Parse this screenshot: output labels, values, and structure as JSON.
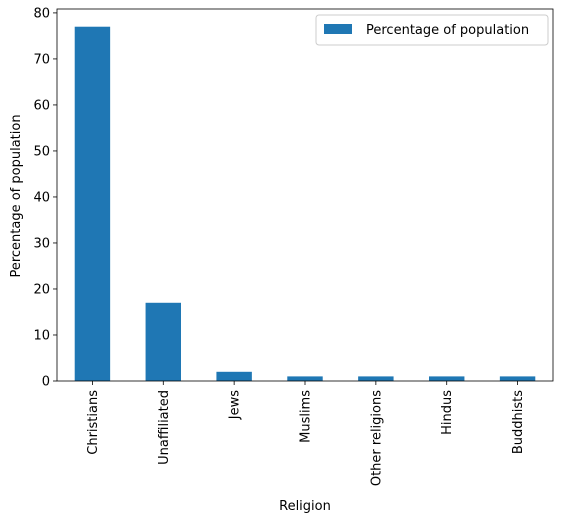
{
  "chart_data": {
    "type": "bar",
    "categories": [
      "Christians",
      "Unaffiliated",
      "Jews",
      "Muslims",
      "Other religions",
      "Hindus",
      "Buddhists"
    ],
    "series": [
      {
        "name": "Percentage of population",
        "values": [
          77,
          17,
          2,
          1,
          1,
          1,
          1
        ],
        "color": "#1f77b4"
      }
    ],
    "xlabel": "Religion",
    "ylabel": "Percentage of population",
    "ylim": [
      0,
      80.85
    ],
    "yticks": [
      0,
      10,
      20,
      30,
      40,
      50,
      60,
      70,
      80
    ],
    "grid": false,
    "legend_position": "top-right",
    "xtick_rotation": "vertical"
  }
}
